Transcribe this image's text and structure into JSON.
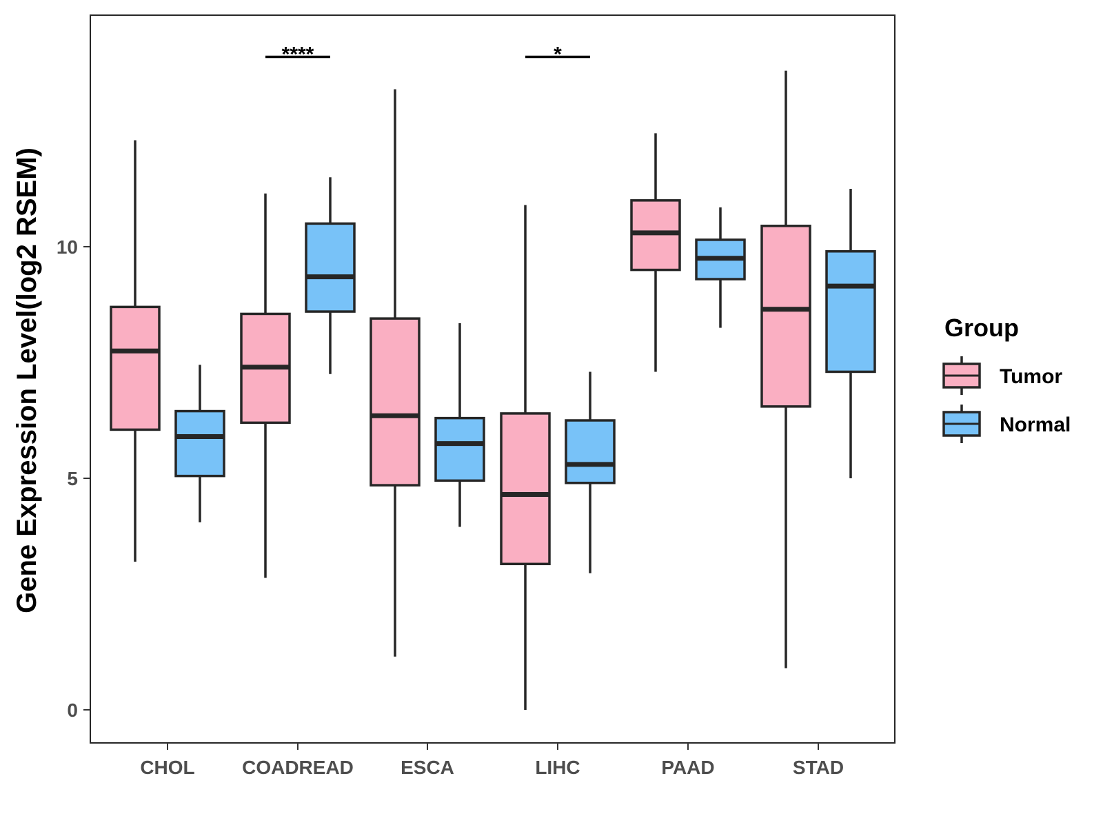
{
  "chart_data": {
    "type": "boxplot",
    "title": "",
    "xlabel": "",
    "ylabel": "Gene Expression Level(log2 RSEM)",
    "ylim": [
      -0.7,
      15
    ],
    "yticks": [
      0,
      5,
      10
    ],
    "grid": false,
    "legend": {
      "title": "Group",
      "position": "right",
      "entries": [
        {
          "name": "Tumor",
          "color": "#FAAFC2"
        },
        {
          "name": "Normal",
          "color": "#78C2F8"
        }
      ]
    },
    "categories": [
      "CHOL",
      "COADREAD",
      "ESCA",
      "LIHC",
      "PAAD",
      "STAD"
    ],
    "series": [
      {
        "name": "Tumor",
        "color": "#FAAFC2",
        "boxes": [
          {
            "min": 3.2,
            "q1": 6.05,
            "median": 7.75,
            "q3": 8.7,
            "max": 12.3
          },
          {
            "min": 2.85,
            "q1": 6.2,
            "median": 7.4,
            "q3": 8.55,
            "max": 11.15
          },
          {
            "min": 1.15,
            "q1": 4.85,
            "median": 6.35,
            "q3": 8.45,
            "max": 13.4
          },
          {
            "min": 0.0,
            "q1": 3.15,
            "median": 4.65,
            "q3": 6.4,
            "max": 10.9
          },
          {
            "min": 7.3,
            "q1": 9.5,
            "median": 10.3,
            "q3": 11.0,
            "max": 12.45
          },
          {
            "min": 0.9,
            "q1": 6.55,
            "median": 8.65,
            "q3": 10.45,
            "max": 13.8
          }
        ]
      },
      {
        "name": "Normal",
        "color": "#78C2F8",
        "boxes": [
          {
            "min": 4.05,
            "q1": 5.05,
            "median": 5.9,
            "q3": 6.45,
            "max": 7.45
          },
          {
            "min": 7.25,
            "q1": 8.6,
            "median": 9.35,
            "q3": 10.5,
            "max": 11.5
          },
          {
            "min": 3.95,
            "q1": 4.95,
            "median": 5.75,
            "q3": 6.3,
            "max": 8.35
          },
          {
            "min": 2.95,
            "q1": 4.9,
            "median": 5.3,
            "q3": 6.25,
            "max": 7.3
          },
          {
            "min": 8.25,
            "q1": 9.3,
            "median": 9.75,
            "q3": 10.15,
            "max": 10.85
          },
          {
            "min": 5.0,
            "q1": 7.3,
            "median": 9.15,
            "q3": 9.9,
            "max": 11.25
          }
        ]
      }
    ],
    "significance": [
      {
        "category": "COADREAD",
        "label": "****",
        "y": 14.1
      },
      {
        "category": "LIHC",
        "label": "*",
        "y": 14.1
      }
    ]
  }
}
